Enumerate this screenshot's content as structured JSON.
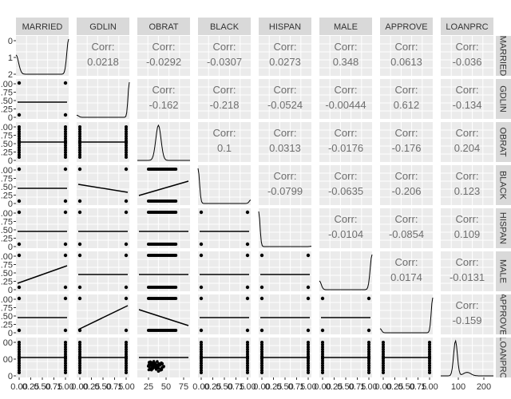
{
  "chart_data": {
    "type": "scatter-matrix",
    "title": "",
    "variables": [
      "MARRIED",
      "GDLIN",
      "OBRAT",
      "BLACK",
      "HISPAN",
      "MALE",
      "APPROVE",
      "LOANPRC"
    ],
    "row_strip_labels": [
      "MARRIED",
      "GDLIN",
      "OBRAT",
      "BLACK",
      "HISPAN",
      "MALE",
      "APPROVE",
      "LOANPRC"
    ],
    "corr_label": "Corr:",
    "correlations": [
      [
        "MARRIED",
        "GDLIN",
        "0.0218"
      ],
      [
        "MARRIED",
        "OBRAT",
        "-0.0292"
      ],
      [
        "MARRIED",
        "BLACK",
        "-0.0307"
      ],
      [
        "MARRIED",
        "HISPAN",
        "0.0273"
      ],
      [
        "MARRIED",
        "MALE",
        "0.348"
      ],
      [
        "MARRIED",
        "APPROVE",
        "0.0613"
      ],
      [
        "MARRIED",
        "LOANPRC",
        "-0.036"
      ],
      [
        "GDLIN",
        "OBRAT",
        "-0.162"
      ],
      [
        "GDLIN",
        "BLACK",
        "-0.218"
      ],
      [
        "GDLIN",
        "HISPAN",
        "-0.0524"
      ],
      [
        "GDLIN",
        "MALE",
        "-0.00444"
      ],
      [
        "GDLIN",
        "APPROVE",
        "0.612"
      ],
      [
        "GDLIN",
        "LOANPRC",
        "-0.134"
      ],
      [
        "OBRAT",
        "BLACK",
        "0.1"
      ],
      [
        "OBRAT",
        "HISPAN",
        "0.0313"
      ],
      [
        "OBRAT",
        "MALE",
        "-0.0176"
      ],
      [
        "OBRAT",
        "APPROVE",
        "-0.176"
      ],
      [
        "OBRAT",
        "LOANPRC",
        "0.204"
      ],
      [
        "BLACK",
        "HISPAN",
        "-0.0799"
      ],
      [
        "BLACK",
        "MALE",
        "-0.0635"
      ],
      [
        "BLACK",
        "APPROVE",
        "-0.206"
      ],
      [
        "BLACK",
        "LOANPRC",
        "0.123"
      ],
      [
        "HISPAN",
        "MALE",
        "-0.0104"
      ],
      [
        "HISPAN",
        "APPROVE",
        "-0.0854"
      ],
      [
        "HISPAN",
        "LOANPRC",
        "0.109"
      ],
      [
        "MALE",
        "APPROVE",
        "0.0174"
      ],
      [
        "MALE",
        "LOANPRC",
        "-0.0131"
      ],
      [
        "APPROVE",
        "LOANPRC",
        "-0.159"
      ]
    ],
    "x_ticks_binary": [
      "0.00",
      "0.25",
      "0.50",
      "0.75",
      "1.00"
    ],
    "x_ticks_obrat": [
      "25",
      "50",
      "75"
    ],
    "x_ticks_loanprc": [
      "100",
      "200"
    ],
    "y_ticks": {
      "MARRIED": [
        "0",
        "1",
        "2"
      ],
      "GDLIN": [
        ".00",
        ".75",
        ".50",
        ".25",
        "0"
      ],
      "OBRAT": [
        ".00",
        ".75",
        ".50",
        ".25",
        "0"
      ],
      "BLACK": [
        ".00",
        ".75",
        ".50",
        ".25",
        "0"
      ],
      "HISPAN": [
        ".00",
        ".75",
        ".50",
        ".25",
        "0"
      ],
      "MALE": [
        ".00",
        ".75",
        ".50",
        ".25",
        "0"
      ],
      "APPROVE": [
        ".00",
        ".75",
        ".50",
        ".25",
        "0"
      ],
      "LOANPRC": [
        "00",
        "00",
        "0"
      ]
    },
    "grid": true,
    "colors": {
      "panel": "#ebebeb",
      "strip": "#d9d9d9",
      "grid": "#ffffff",
      "ink": "#000000",
      "corr": "#6e6e6e",
      "tick": "#333333"
    }
  }
}
